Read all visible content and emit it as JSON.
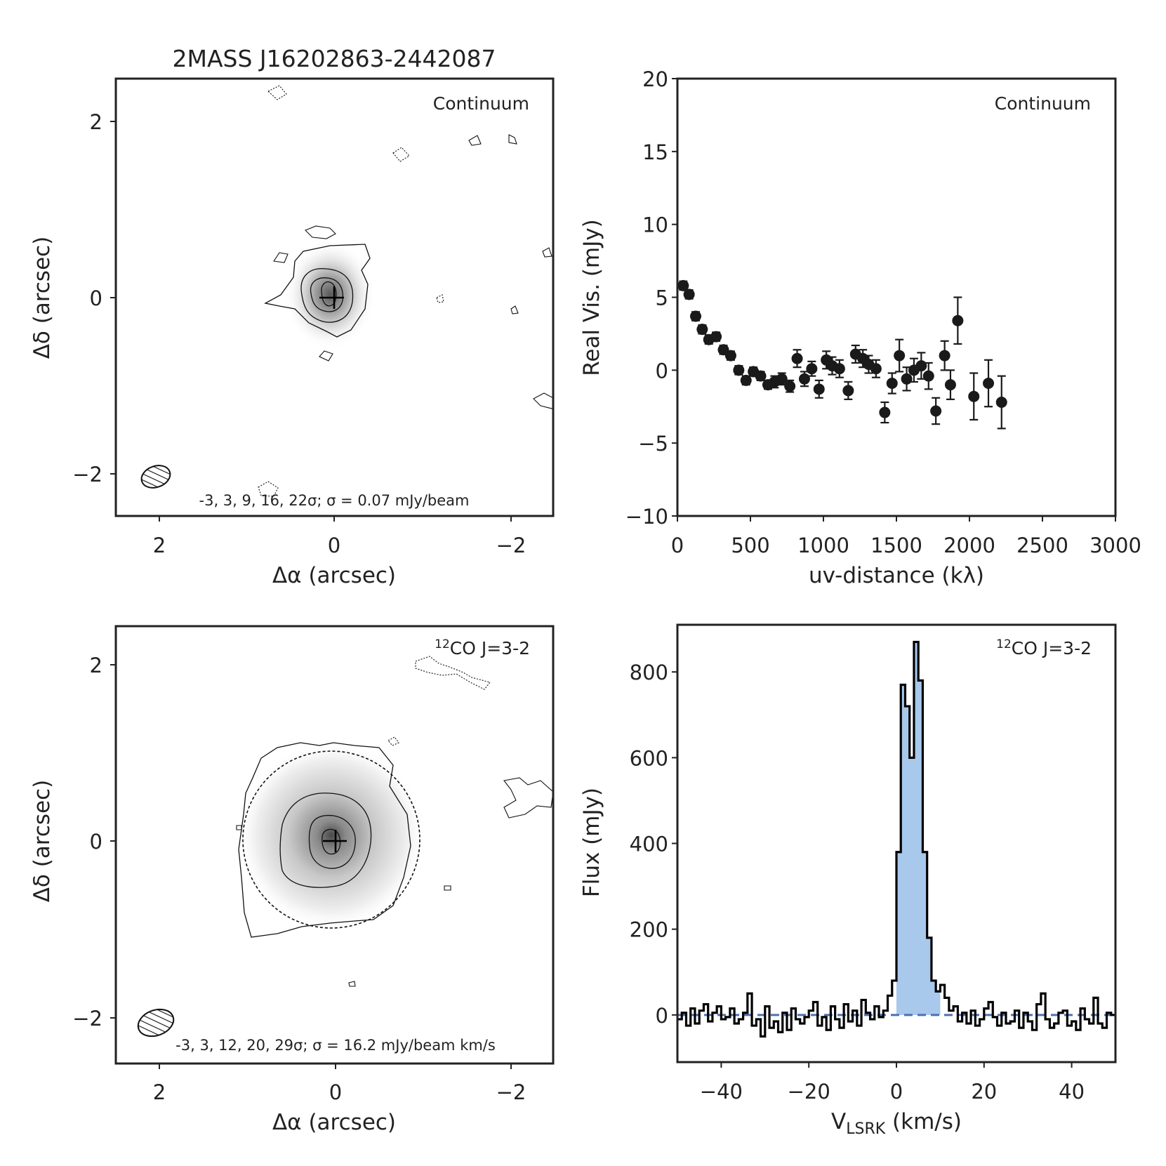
{
  "figure": {
    "title": "2MASS J16202863-2442087"
  },
  "chart_data": [
    {
      "id": "continuum_map",
      "type": "image",
      "title": "2MASS J16202863-2442087",
      "label": "Continuum",
      "xlabel": "Δα (arcsec)",
      "ylabel": "Δδ (arcsec)",
      "xlim": [
        2.5,
        -2.5
      ],
      "ylim": [
        -2.5,
        2.5
      ],
      "xticks": [
        "2",
        "0",
        "−2"
      ],
      "yticks": [
        "2",
        "0",
        "−2"
      ],
      "contour_note": "-3, 3, 9, 16, 22σ; σ = 0.07 mJy/beam",
      "beam": {
        "major": 0.36,
        "minor": 0.24,
        "center": [
          2.0,
          -2.04
        ]
      }
    },
    {
      "id": "continuum_visibility",
      "type": "scatter",
      "label": "Continuum",
      "xlabel": "uv-distance (kλ)",
      "ylabel": "Real Vis. (mJy)",
      "xlim": [
        0,
        3000
      ],
      "ylim": [
        -10,
        20
      ],
      "xticks": [
        "0",
        "500",
        "1000",
        "1500",
        "2000",
        "2500",
        "3000"
      ],
      "yticks": [
        "−10",
        "−5",
        "0",
        "5",
        "10",
        "15",
        "20"
      ],
      "x": [
        40,
        80,
        125,
        170,
        215,
        265,
        315,
        365,
        420,
        470,
        520,
        570,
        620,
        665,
        715,
        770,
        820,
        870,
        920,
        970,
        1020,
        1060,
        1110,
        1170,
        1220,
        1270,
        1310,
        1360,
        1420,
        1470,
        1520,
        1570,
        1620,
        1670,
        1720,
        1770,
        1830,
        1870,
        1920,
        2030,
        2130,
        2220
      ],
      "y": [
        5.8,
        5.2,
        3.7,
        2.8,
        2.1,
        2.3,
        1.4,
        1.0,
        0.0,
        -0.7,
        -0.1,
        -0.4,
        -1.0,
        -0.8,
        -0.6,
        -1.1,
        0.8,
        -0.6,
        0.1,
        -1.3,
        0.7,
        0.3,
        0.1,
        -1.4,
        1.1,
        0.8,
        0.4,
        0.1,
        -2.9,
        -0.9,
        1.0,
        -0.6,
        0.0,
        0.3,
        -0.4,
        -2.8,
        1.0,
        -1.0,
        3.4,
        -1.8,
        -0.9,
        -2.2
      ],
      "yerr": [
        0.3,
        0.3,
        0.3,
        0.3,
        0.3,
        0.3,
        0.3,
        0.3,
        0.3,
        0.3,
        0.3,
        0.3,
        0.3,
        0.4,
        0.4,
        0.4,
        0.6,
        0.5,
        0.5,
        0.6,
        0.6,
        0.6,
        0.6,
        0.6,
        0.6,
        0.6,
        0.6,
        0.6,
        0.7,
        0.7,
        1.1,
        0.8,
        0.8,
        0.9,
        0.9,
        0.9,
        1.0,
        1.0,
        1.6,
        1.6,
        1.6,
        1.8
      ]
    },
    {
      "id": "co_map",
      "type": "image",
      "label_sup": "12",
      "label": "CO J=3-2",
      "xlabel": "Δα (arcsec)",
      "ylabel": "Δδ (arcsec)",
      "xlim": [
        2.5,
        -2.5
      ],
      "ylim": [
        -2.5,
        2.5
      ],
      "xticks": [
        "2",
        "0",
        "−2"
      ],
      "yticks": [
        "2",
        "0",
        "−2"
      ],
      "contour_note": "-3, 3, 12, 20, 29σ; σ = 16.2 mJy/beam km/s",
      "circle_radius": 1.0,
      "beam": {
        "major": 0.42,
        "minor": 0.3,
        "center": [
          2.0,
          -2.04
        ]
      }
    },
    {
      "id": "co_spectrum",
      "type": "line",
      "label_sup": "12",
      "label": "CO J=3-2",
      "xlabel_main": "V",
      "xlabel_sub": "LSRK",
      "xlabel_units": " (km/s)",
      "ylabel": "Flux (mJy)",
      "xlim": [
        -50,
        50
      ],
      "ylim": [
        -110,
        910
      ],
      "xticks": [
        "−40",
        "−20",
        "0",
        "20",
        "40"
      ],
      "yticks": [
        "0",
        "200",
        "400",
        "600",
        "800"
      ],
      "x": [
        -49.5,
        -48.5,
        -47.5,
        -46.5,
        -45.5,
        -44.5,
        -43.5,
        -42.5,
        -41.5,
        -40.5,
        -39.5,
        -38.5,
        -37.5,
        -36.5,
        -35.5,
        -34.5,
        -33.5,
        -32.5,
        -31.5,
        -30.5,
        -29.5,
        -28.5,
        -27.5,
        -26.5,
        -25.5,
        -24.5,
        -23.5,
        -22.5,
        -21.5,
        -20.5,
        -19.5,
        -18.5,
        -17.5,
        -16.5,
        -15.5,
        -14.5,
        -13.5,
        -12.5,
        -11.5,
        -10.5,
        -9.5,
        -8.5,
        -7.5,
        -6.5,
        -5.5,
        -4.5,
        -3.5,
        -2.5,
        -1.5,
        -0.5,
        0.5,
        1.5,
        2.5,
        3.5,
        4.5,
        5.5,
        6.5,
        7.5,
        8.5,
        9.5,
        10.5,
        11.5,
        12.5,
        13.5,
        14.5,
        15.5,
        16.5,
        17.5,
        18.5,
        19.5,
        20.5,
        21.5,
        22.5,
        23.5,
        24.5,
        25.5,
        26.5,
        27.5,
        28.5,
        29.5,
        30.5,
        31.5,
        32.5,
        33.5,
        34.5,
        35.5,
        36.5,
        37.5,
        38.5,
        39.5,
        40.5,
        41.5,
        42.5,
        43.5,
        44.5,
        45.5,
        46.5,
        47.5,
        48.5,
        49.5
      ],
      "y": [
        -10,
        5,
        -25,
        15,
        -20,
        10,
        25,
        -15,
        5,
        20,
        -10,
        -5,
        15,
        -20,
        -10,
        5,
        50,
        -25,
        -10,
        -50,
        20,
        -30,
        -15,
        -40,
        5,
        -35,
        15,
        -10,
        -20,
        -5,
        10,
        30,
        -25,
        -5,
        -35,
        20,
        -10,
        -30,
        25,
        -15,
        10,
        -25,
        35,
        5,
        -10,
        20,
        -5,
        10,
        45,
        80,
        380,
        770,
        720,
        600,
        870,
        780,
        380,
        180,
        80,
        55,
        70,
        40,
        10,
        20,
        -15,
        5,
        -20,
        10,
        -25,
        -10,
        15,
        30,
        -5,
        -25,
        5,
        -20,
        -15,
        10,
        -30,
        5,
        -15,
        -35,
        25,
        50,
        -10,
        -30,
        -20,
        5,
        10,
        -25,
        -15,
        -35,
        15,
        -10,
        -20,
        40,
        -20,
        -30,
        5,
        0
      ],
      "baseline": 0
    }
  ]
}
